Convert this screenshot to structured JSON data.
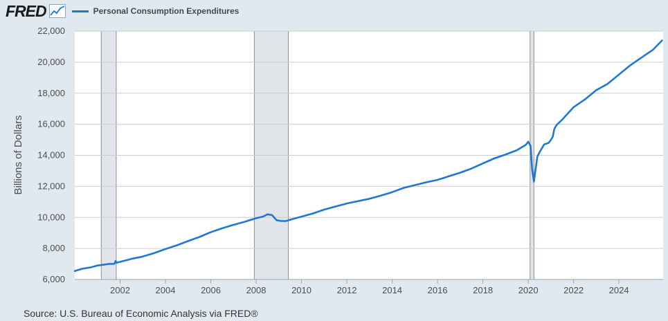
{
  "header": {
    "logo_text": "FRED",
    "legend_label": "Personal Consumption Expenditures"
  },
  "source": "Source: U.S. Bureau of Economic Analysis via FRED®",
  "colors": {
    "series": "#1f77d4",
    "recession": "#e1e5ea",
    "background": "#e1e9f0",
    "plot": "#ffffff",
    "grid": "#cccccc"
  },
  "chart_data": {
    "type": "line",
    "title": "",
    "xlabel": "",
    "ylabel": "Billions of Dollars",
    "xlim": [
      2000.0,
      2025.95
    ],
    "ylim": [
      6000,
      22000
    ],
    "yticks": [
      6000,
      8000,
      10000,
      12000,
      14000,
      16000,
      18000,
      20000,
      22000
    ],
    "ytick_labels": [
      "6,000",
      "8,000",
      "10,000",
      "12,000",
      "14,000",
      "16,000",
      "18,000",
      "20,000",
      "22,000"
    ],
    "xticks": [
      2002,
      2004,
      2006,
      2008,
      2010,
      2012,
      2014,
      2016,
      2018,
      2020,
      2022,
      2024
    ],
    "xtick_labels": [
      "2002",
      "2004",
      "2006",
      "2008",
      "2010",
      "2012",
      "2014",
      "2016",
      "2018",
      "2020",
      "2022",
      "2024"
    ],
    "recessions": [
      [
        2001.17,
        2001.83
      ],
      [
        2007.92,
        2009.42
      ],
      [
        2020.08,
        2020.25
      ]
    ],
    "series": [
      {
        "name": "Personal Consumption Expenditures",
        "x": [
          2000.0,
          2000.3,
          2000.7,
          2001.0,
          2001.5,
          2001.75,
          2001.8,
          2001.85,
          2002.5,
          2003.0,
          2003.5,
          2004.0,
          2004.5,
          2005.0,
          2005.5,
          2006.0,
          2006.5,
          2007.0,
          2007.5,
          2008.0,
          2008.3,
          2008.5,
          2008.7,
          2008.9,
          2009.1,
          2009.3,
          2009.5,
          2010.0,
          2010.5,
          2011.0,
          2011.5,
          2012.0,
          2012.5,
          2013.0,
          2013.5,
          2014.0,
          2014.5,
          2015.0,
          2015.5,
          2016.0,
          2016.5,
          2017.0,
          2017.5,
          2018.0,
          2018.5,
          2019.0,
          2019.5,
          2019.9,
          2020.0,
          2020.1,
          2020.17,
          2020.25,
          2020.4,
          2020.5,
          2020.7,
          2020.9,
          2021.0,
          2021.08,
          2021.15,
          2021.25,
          2021.5,
          2022.0,
          2022.5,
          2023.0,
          2023.5,
          2024.0,
          2024.5,
          2025.0,
          2025.5,
          2025.9
        ],
        "values": [
          6550,
          6680,
          6780,
          6900,
          7000,
          7010,
          7190,
          7080,
          7330,
          7480,
          7700,
          7960,
          8200,
          8480,
          8740,
          9050,
          9300,
          9520,
          9720,
          9950,
          10050,
          10200,
          10150,
          9820,
          9770,
          9760,
          9850,
          10050,
          10250,
          10500,
          10700,
          10900,
          11050,
          11200,
          11400,
          11630,
          11900,
          12080,
          12260,
          12420,
          12650,
          12880,
          13150,
          13480,
          13800,
          14050,
          14330,
          14680,
          14880,
          14600,
          13100,
          12300,
          13900,
          14200,
          14700,
          14800,
          15000,
          15200,
          15700,
          15950,
          16300,
          17100,
          17600,
          18200,
          18600,
          19200,
          19800,
          20300,
          20800,
          21400
        ]
      }
    ]
  }
}
